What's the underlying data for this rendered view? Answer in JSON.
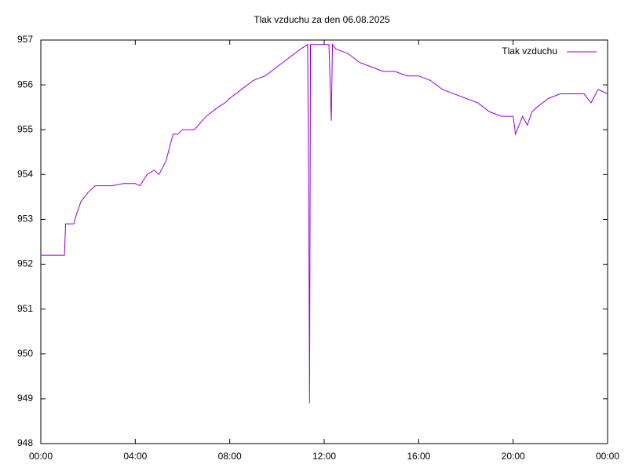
{
  "chart_data": {
    "type": "line",
    "title": "Tlak vzduchu za den 06.08.2025",
    "x": [
      0,
      1.0,
      1.05,
      1.4,
      1.5,
      1.7,
      2.0,
      2.3,
      3.0,
      3.5,
      4.0,
      4.2,
      4.5,
      4.8,
      5.0,
      5.3,
      5.6,
      5.8,
      6.0,
      6.5,
      7.0,
      7.5,
      7.8,
      8.0,
      8.5,
      9.0,
      9.5,
      10.0,
      10.5,
      11.0,
      11.3,
      11.35,
      11.38,
      11.42,
      12.0,
      12.2,
      12.3,
      12.35,
      12.5,
      13.0,
      13.5,
      14.0,
      14.5,
      15.0,
      15.5,
      16.0,
      16.5,
      17.0,
      17.5,
      18.0,
      18.5,
      19.0,
      19.5,
      20.0,
      20.1,
      20.4,
      20.6,
      20.8,
      21.0,
      21.5,
      22.0,
      22.5,
      23.0,
      23.3,
      23.6,
      24.0
    ],
    "series": [
      {
        "name": "Tlak vzduchu",
        "color": "#9400d3",
        "values": [
          952.2,
          952.2,
          952.9,
          952.9,
          953.1,
          953.4,
          953.6,
          953.75,
          953.75,
          953.8,
          953.8,
          953.75,
          954.0,
          954.1,
          954.0,
          954.3,
          954.9,
          954.9,
          955.0,
          955.0,
          955.3,
          955.5,
          955.6,
          955.7,
          955.9,
          956.1,
          956.2,
          956.4,
          956.6,
          956.8,
          956.9,
          952.9,
          948.9,
          956.9,
          956.9,
          956.9,
          955.2,
          956.9,
          956.8,
          956.7,
          956.5,
          956.4,
          956.3,
          956.3,
          956.2,
          956.2,
          956.1,
          955.9,
          955.8,
          955.7,
          955.6,
          955.4,
          955.3,
          955.3,
          954.9,
          955.3,
          955.1,
          955.4,
          955.5,
          955.7,
          955.8,
          955.8,
          955.8,
          955.6,
          955.9,
          955.8
        ]
      }
    ],
    "xlim": [
      0,
      24
    ],
    "xticks": [
      {
        "value": 0,
        "label": "00:00"
      },
      {
        "value": 4,
        "label": "04:00"
      },
      {
        "value": 8,
        "label": "08:00"
      },
      {
        "value": 12,
        "label": "12:00"
      },
      {
        "value": 16,
        "label": "16:00"
      },
      {
        "value": 20,
        "label": "20:00"
      },
      {
        "value": 24,
        "label": "00:00"
      }
    ],
    "ylim": [
      948,
      957
    ],
    "yticks": [
      948,
      949,
      950,
      951,
      952,
      953,
      954,
      955,
      956,
      957
    ],
    "legend": "top-right"
  }
}
